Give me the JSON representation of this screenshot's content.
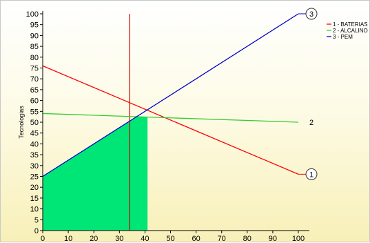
{
  "chart_data": {
    "type": "line",
    "title": "",
    "ylabel": "Tecnologias",
    "xlabel": "",
    "xlim": [
      0,
      100
    ],
    "ylim": [
      0,
      100
    ],
    "x_ticks": [
      0,
      10,
      20,
      30,
      40,
      50,
      60,
      70,
      80,
      90,
      100
    ],
    "y_ticks": [
      0,
      5,
      10,
      15,
      20,
      25,
      30,
      35,
      40,
      45,
      50,
      55,
      60,
      65,
      70,
      75,
      80,
      85,
      90,
      95,
      100
    ],
    "grid": false,
    "legend_position": "top-right",
    "series": [
      {
        "name": "1 - BATERIAS",
        "label": "1",
        "color": "#ff0000",
        "x": [
          0,
          100
        ],
        "y": [
          76,
          26
        ]
      },
      {
        "name": "2 - ALCALINO",
        "label": "2",
        "color": "#33cc33",
        "x": [
          0,
          100
        ],
        "y": [
          54,
          50
        ]
      },
      {
        "name": "3 - PEM",
        "label": "3",
        "color": "#0000cc",
        "x": [
          0,
          100
        ],
        "y": [
          25,
          100
        ]
      }
    ],
    "vertical_line": {
      "x": 34,
      "color": "#cc0000"
    },
    "shaded_region": {
      "x_max": 41,
      "color": "#00e676"
    }
  }
}
